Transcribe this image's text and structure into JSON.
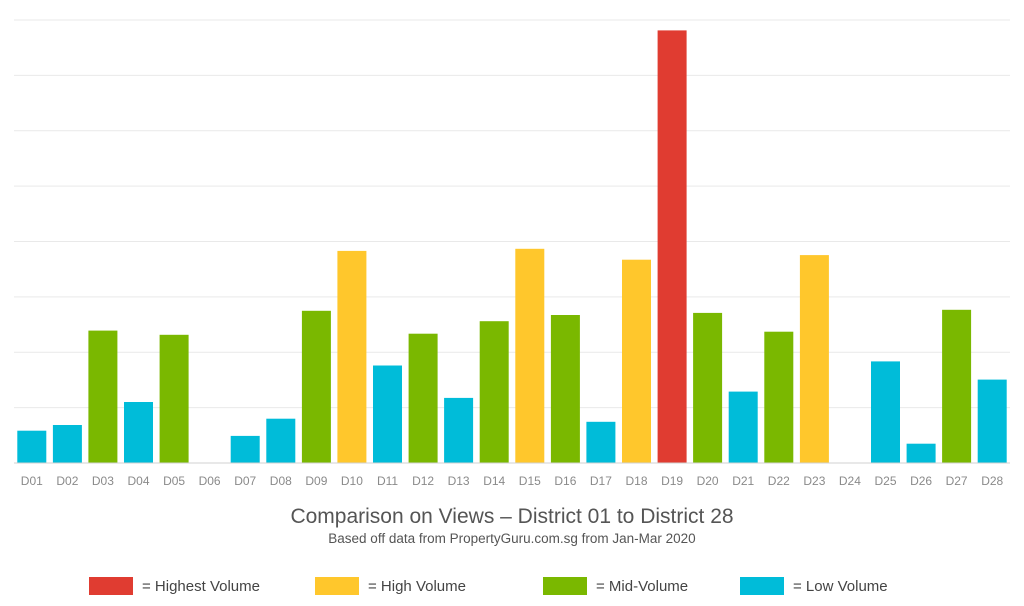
{
  "chart_data": {
    "type": "bar",
    "title": "Comparison on Views – District 01 to District 28",
    "subtitle": "Based off data from PropertyGuru.com.sg from Jan-Mar 2020",
    "categories": [
      "D01",
      "D02",
      "D03",
      "D04",
      "D05",
      "D06",
      "D07",
      "D08",
      "D09",
      "D10",
      "D11",
      "D12",
      "D13",
      "D14",
      "D15",
      "D16",
      "D17",
      "D18",
      "D19",
      "D20",
      "D21",
      "D22",
      "D23",
      "D24",
      "D25",
      "D26",
      "D27",
      "D28"
    ],
    "values": [
      0.62,
      0.73,
      2.54,
      1.17,
      2.46,
      0,
      0.52,
      0.85,
      2.92,
      4.07,
      1.87,
      2.48,
      1.25,
      2.72,
      4.11,
      2.84,
      0.79,
      3.9,
      8.3,
      2.88,
      1.37,
      2.52,
      3.99,
      0,
      1.95,
      0.37,
      2.94,
      1.6
    ],
    "levels": [
      "low",
      "low",
      "mid",
      "low",
      "mid",
      "none",
      "low",
      "low",
      "mid",
      "high",
      "low",
      "mid",
      "low",
      "mid",
      "high",
      "mid",
      "low",
      "high",
      "highest",
      "mid",
      "low",
      "mid",
      "high",
      "none",
      "low",
      "low",
      "mid",
      "low"
    ],
    "ylim": [
      0,
      8.5
    ],
    "y_gridlines": 8,
    "grid": true,
    "y_tick_labels_shown": false,
    "legend_position": "bottom",
    "legend": [
      {
        "key": "highest",
        "label": "= Highest Volume",
        "color": "#e03c31"
      },
      {
        "key": "high",
        "label": "= High Volume",
        "color": "#ffc72c"
      },
      {
        "key": "mid",
        "label": "= Mid-Volume",
        "color": "#7ab800"
      },
      {
        "key": "low",
        "label": "= Low Volume",
        "color": "#00bcd9"
      }
    ]
  }
}
